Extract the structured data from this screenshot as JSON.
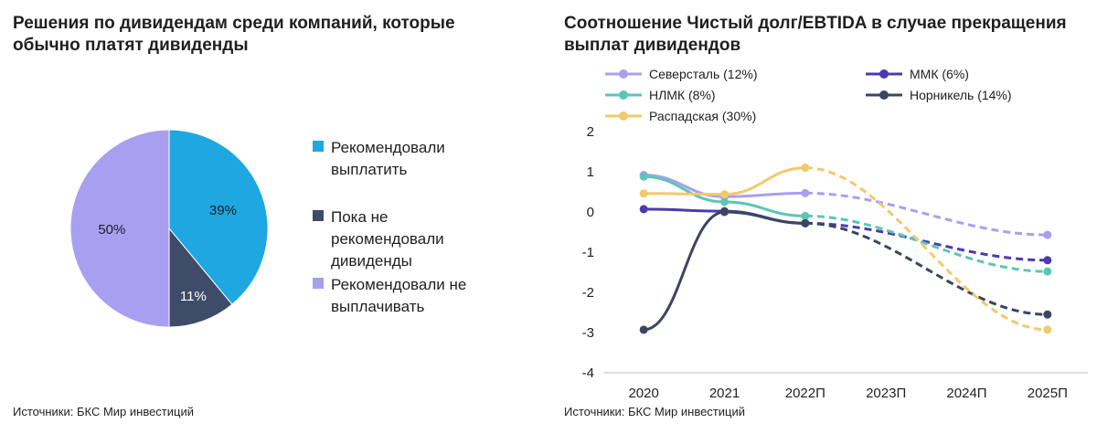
{
  "left": {
    "title": "Решения по дивидендам среди компаний, которые обычно платят дивиденды",
    "source": "Источники: БКС Мир инвестиций"
  },
  "right": {
    "title": "Соотношение Чистый долг/EBTIDA в случае прекращения выплат дивидендов",
    "source": "Источники: БКС Мир инвестиций"
  },
  "chart_data": [
    {
      "type": "pie",
      "categories": [
        "Рекомендовали выплатить",
        "Пока не рекомендовали дивиденды",
        "Рекомендовали не выплачивать"
      ],
      "values": [
        39,
        11,
        50
      ],
      "value_labels": [
        "39%",
        "11%",
        "50%"
      ],
      "colors": [
        "#1ea7e1",
        "#3e4c6a",
        "#a99ff0"
      ],
      "legend": "right"
    },
    {
      "type": "line",
      "categories": [
        "2020",
        "2021",
        "2022П",
        "2023П",
        "2024П",
        "2025П"
      ],
      "ylim": [
        -4,
        2
      ],
      "yticks": [
        "2",
        "1",
        "0",
        "-1",
        "-2",
        "-3",
        "-4"
      ],
      "grid": false,
      "legend": "top",
      "solid_until_index": 2,
      "series": [
        {
          "name": "Северсталь (12%)",
          "color": "#a99ff0",
          "values": [
            0.92,
            0.38,
            0.47,
            null,
            null,
            -0.57
          ]
        },
        {
          "name": "ММК (6%)",
          "color": "#4a3bb0",
          "values": [
            0.07,
            0.02,
            -0.28,
            null,
            null,
            -1.2
          ]
        },
        {
          "name": "НЛМК (8%)",
          "color": "#5cc6b4",
          "values": [
            0.88,
            0.25,
            -0.1,
            null,
            null,
            -1.48
          ]
        },
        {
          "name": "Норникель (14%)",
          "color": "#3a4660",
          "values": [
            -2.93,
            0.0,
            -0.28,
            null,
            null,
            -2.55
          ]
        },
        {
          "name": "Распадская (30%)",
          "color": "#f2c96b",
          "values": [
            0.46,
            0.44,
            1.1,
            null,
            null,
            -2.93
          ]
        }
      ]
    }
  ]
}
